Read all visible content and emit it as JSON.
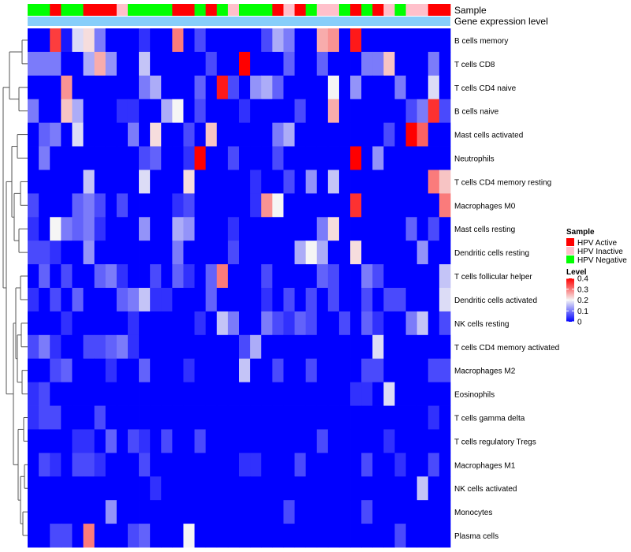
{
  "chart_data": {
    "type": "heatmap",
    "title": "",
    "annotation_tracks": [
      "Sample",
      "Gene expression level"
    ],
    "row_labels": [
      "B cells memory",
      "T cells CD8",
      "T cells CD4 naive",
      "B cells naive",
      "Mast cells activated",
      "Neutrophils",
      "T cells CD4 memory resting",
      "Macrophages M0",
      "Mast cells resting",
      "Dendritic cells resting",
      "T cells follicular helper",
      "Dendritic cells activated",
      "NK cells resting",
      "T cells CD4 memory activated",
      "Macrophages M2",
      "Eosinophils",
      "T cells gamma delta",
      "T cells regulatory  Tregs",
      "Macrophages M1",
      "NK cells activated",
      "Monocytes",
      "Plasma cells"
    ],
    "sample_groups": [
      "HPV Negative",
      "HPV Negative",
      "HPV Active",
      "HPV Negative",
      "HPV Negative",
      "HPV Active",
      "HPV Active",
      "HPV Active",
      "HPV Inactive",
      "HPV Negative",
      "HPV Negative",
      "HPV Negative",
      "HPV Negative",
      "HPV Active",
      "HPV Active",
      "HPV Negative",
      "HPV Active",
      "HPV Negative",
      "HPV Inactive",
      "HPV Negative",
      "HPV Negative",
      "HPV Negative",
      "HPV Active",
      "HPV Inactive",
      "HPV Active",
      "HPV Negative",
      "HPV Inactive",
      "HPV Inactive",
      "HPV Negative",
      "HPV Active",
      "HPV Negative",
      "HPV Active",
      "HPV Inactive",
      "HPV Negative",
      "HPV Inactive",
      "HPV Inactive",
      "HPV Active",
      "HPV Active"
    ],
    "values": [
      [
        0.0,
        0.0,
        0.35,
        0.02,
        0.18,
        0.22,
        0.1,
        0.0,
        0.0,
        0.0,
        0.04,
        0.0,
        0.0,
        0.3,
        0.0,
        0.06,
        0.0,
        0.0,
        0.0,
        0.0,
        0.0,
        0.06,
        0.14,
        0.1,
        0.0,
        0.0,
        0.26,
        0.28,
        0.0,
        0.38,
        0.0,
        0.0,
        0.0,
        0.0,
        0.0,
        0.0,
        0.0,
        0.0
      ],
      [
        0.1,
        0.1,
        0.1,
        0.0,
        0.0,
        0.14,
        0.26,
        0.12,
        0.0,
        0.0,
        0.16,
        0.0,
        0.0,
        0.0,
        0.0,
        0.0,
        0.06,
        0.0,
        0.0,
        0.4,
        0.0,
        0.0,
        0.0,
        0.08,
        0.0,
        0.0,
        0.08,
        0.0,
        0.0,
        0.0,
        0.1,
        0.1,
        0.24,
        0.0,
        0.0,
        0.0,
        0.1,
        0.0
      ],
      [
        0.0,
        0.0,
        0.0,
        0.28,
        0.0,
        0.0,
        0.0,
        0.0,
        0.0,
        0.0,
        0.1,
        0.14,
        0.0,
        0.0,
        0.0,
        0.08,
        0.0,
        0.38,
        0.06,
        0.0,
        0.12,
        0.14,
        0.08,
        0.0,
        0.0,
        0.0,
        0.0,
        0.2,
        0.0,
        0.12,
        0.0,
        0.0,
        0.0,
        0.1,
        0.0,
        0.0,
        0.18,
        0.0
      ],
      [
        0.1,
        0.0,
        0.0,
        0.24,
        0.14,
        0.0,
        0.0,
        0.0,
        0.04,
        0.04,
        0.0,
        0.0,
        0.14,
        0.2,
        0.0,
        0.06,
        0.0,
        0.0,
        0.0,
        0.04,
        0.0,
        0.0,
        0.0,
        0.0,
        0.06,
        0.0,
        0.0,
        0.26,
        0.0,
        0.0,
        0.0,
        0.0,
        0.0,
        0.0,
        0.06,
        0.1,
        0.36,
        0.06
      ],
      [
        0.0,
        0.08,
        0.1,
        0.0,
        0.18,
        0.0,
        0.0,
        0.0,
        0.0,
        0.1,
        0.0,
        0.22,
        0.0,
        0.0,
        0.06,
        0.0,
        0.24,
        0.0,
        0.0,
        0.0,
        0.0,
        0.0,
        0.1,
        0.14,
        0.0,
        0.0,
        0.0,
        0.0,
        0.0,
        0.0,
        0.0,
        0.0,
        0.06,
        0.0,
        0.4,
        0.32,
        0.0,
        0.0
      ],
      [
        0.0,
        0.1,
        0.0,
        0.0,
        0.0,
        0.0,
        0.0,
        0.0,
        0.0,
        0.0,
        0.06,
        0.08,
        0.0,
        0.0,
        0.04,
        0.4,
        0.0,
        0.0,
        0.06,
        0.0,
        0.0,
        0.0,
        0.06,
        0.0,
        0.0,
        0.0,
        0.0,
        0.0,
        0.0,
        0.4,
        0.0,
        0.12,
        0.0,
        0.0,
        0.0,
        0.0,
        0.0,
        0.0
      ],
      [
        0.0,
        0.0,
        0.0,
        0.0,
        0.0,
        0.16,
        0.0,
        0.0,
        0.0,
        0.0,
        0.18,
        0.0,
        0.0,
        0.0,
        0.22,
        0.0,
        0.0,
        0.0,
        0.0,
        0.0,
        0.04,
        0.0,
        0.0,
        0.06,
        0.0,
        0.12,
        0.0,
        0.16,
        0.0,
        0.0,
        0.0,
        0.0,
        0.0,
        0.0,
        0.0,
        0.0,
        0.3,
        0.24
      ],
      [
        0.06,
        0.0,
        0.0,
        0.0,
        0.08,
        0.1,
        0.06,
        0.0,
        0.06,
        0.0,
        0.0,
        0.0,
        0.0,
        0.04,
        0.06,
        0.0,
        0.0,
        0.0,
        0.0,
        0.0,
        0.04,
        0.28,
        0.2,
        0.0,
        0.0,
        0.0,
        0.0,
        0.0,
        0.0,
        0.36,
        0.0,
        0.0,
        0.0,
        0.0,
        0.0,
        0.0,
        0.0,
        0.3
      ],
      [
        0.04,
        0.0,
        0.2,
        0.1,
        0.08,
        0.1,
        0.04,
        0.0,
        0.0,
        0.0,
        0.12,
        0.0,
        0.0,
        0.14,
        0.12,
        0.0,
        0.0,
        0.0,
        0.04,
        0.0,
        0.0,
        0.0,
        0.0,
        0.0,
        0.0,
        0.0,
        0.1,
        0.22,
        0.0,
        0.0,
        0.0,
        0.0,
        0.0,
        0.0,
        0.08,
        0.0,
        0.06,
        0.0
      ],
      [
        0.06,
        0.06,
        0.04,
        0.0,
        0.0,
        0.12,
        0.0,
        0.0,
        0.0,
        0.0,
        0.0,
        0.0,
        0.0,
        0.1,
        0.0,
        0.0,
        0.0,
        0.0,
        0.06,
        0.0,
        0.0,
        0.0,
        0.0,
        0.0,
        0.14,
        0.2,
        0.14,
        0.0,
        0.0,
        0.22,
        0.0,
        0.0,
        0.0,
        0.0,
        0.0,
        0.12,
        0.0,
        0.0
      ],
      [
        0.0,
        0.08,
        0.0,
        0.06,
        0.0,
        0.0,
        0.08,
        0.1,
        0.04,
        0.0,
        0.0,
        0.06,
        0.0,
        0.08,
        0.04,
        0.0,
        0.08,
        0.3,
        0.0,
        0.0,
        0.0,
        0.06,
        0.0,
        0.0,
        0.0,
        0.0,
        0.08,
        0.06,
        0.0,
        0.0,
        0.1,
        0.06,
        0.0,
        0.0,
        0.0,
        0.0,
        0.0,
        0.16
      ],
      [
        0.04,
        0.0,
        0.06,
        0.0,
        0.08,
        0.0,
        0.0,
        0.0,
        0.08,
        0.1,
        0.16,
        0.04,
        0.04,
        0.0,
        0.0,
        0.0,
        0.08,
        0.0,
        0.0,
        0.0,
        0.0,
        0.04,
        0.0,
        0.06,
        0.0,
        0.06,
        0.0,
        0.06,
        0.0,
        0.0,
        0.06,
        0.0,
        0.06,
        0.06,
        0.0,
        0.0,
        0.0,
        0.18
      ],
      [
        0.0,
        0.0,
        0.0,
        0.04,
        0.0,
        0.0,
        0.0,
        0.0,
        0.0,
        0.04,
        0.0,
        0.0,
        0.0,
        0.0,
        0.0,
        0.04,
        0.0,
        0.16,
        0.1,
        0.0,
        0.0,
        0.1,
        0.06,
        0.04,
        0.08,
        0.06,
        0.0,
        0.0,
        0.06,
        0.0,
        0.08,
        0.04,
        0.0,
        0.0,
        0.1,
        0.16,
        0.0,
        0.06
      ],
      [
        0.06,
        0.1,
        0.04,
        0.0,
        0.0,
        0.06,
        0.06,
        0.08,
        0.1,
        0.04,
        0.0,
        0.0,
        0.0,
        0.0,
        0.0,
        0.0,
        0.0,
        0.0,
        0.0,
        0.06,
        0.14,
        0.0,
        0.0,
        0.0,
        0.0,
        0.0,
        0.0,
        0.0,
        0.0,
        0.0,
        0.0,
        0.18,
        0.0,
        0.0,
        0.0,
        0.0,
        0.0,
        0.0
      ],
      [
        0.0,
        0.0,
        0.06,
        0.08,
        0.0,
        0.0,
        0.0,
        0.04,
        0.0,
        0.0,
        0.08,
        0.0,
        0.0,
        0.0,
        0.04,
        0.0,
        0.0,
        0.0,
        0.0,
        0.16,
        0.0,
        0.0,
        0.06,
        0.0,
        0.0,
        0.06,
        0.0,
        0.0,
        0.0,
        0.0,
        0.06,
        0.06,
        0.0,
        0.0,
        0.0,
        0.0,
        0.06,
        0.06
      ],
      [
        0.04,
        0.06,
        0.0,
        0.0,
        0.0,
        0.0,
        0.0,
        0.0,
        0.0,
        0.0,
        0.0,
        0.0,
        0.0,
        0.0,
        0.0,
        0.0,
        0.0,
        0.0,
        0.0,
        0.0,
        0.0,
        0.0,
        0.0,
        0.0,
        0.0,
        0.0,
        0.0,
        0.0,
        0.0,
        0.04,
        0.04,
        0.0,
        0.18,
        0.0,
        0.0,
        0.0,
        0.0,
        0.0
      ],
      [
        0.04,
        0.06,
        0.06,
        0.0,
        0.0,
        0.0,
        0.06,
        0.0,
        0.0,
        0.0,
        0.0,
        0.0,
        0.0,
        0.0,
        0.0,
        0.0,
        0.0,
        0.0,
        0.0,
        0.0,
        0.0,
        0.0,
        0.0,
        0.0,
        0.0,
        0.0,
        0.0,
        0.0,
        0.0,
        0.0,
        0.0,
        0.0,
        0.0,
        0.0,
        0.0,
        0.0,
        0.04,
        0.0
      ],
      [
        0.0,
        0.0,
        0.0,
        0.0,
        0.04,
        0.04,
        0.0,
        0.08,
        0.0,
        0.06,
        0.04,
        0.0,
        0.06,
        0.0,
        0.0,
        0.06,
        0.0,
        0.0,
        0.0,
        0.0,
        0.0,
        0.0,
        0.0,
        0.0,
        0.0,
        0.0,
        0.06,
        0.0,
        0.0,
        0.0,
        0.0,
        0.0,
        0.04,
        0.0,
        0.0,
        0.0,
        0.0,
        0.0
      ],
      [
        0.0,
        0.06,
        0.04,
        0.0,
        0.06,
        0.06,
        0.04,
        0.0,
        0.0,
        0.0,
        0.06,
        0.0,
        0.0,
        0.0,
        0.0,
        0.0,
        0.0,
        0.0,
        0.0,
        0.04,
        0.04,
        0.0,
        0.0,
        0.0,
        0.06,
        0.0,
        0.0,
        0.0,
        0.0,
        0.0,
        0.06,
        0.0,
        0.0,
        0.04,
        0.0,
        0.0,
        0.06,
        0.0
      ],
      [
        0.0,
        0.0,
        0.0,
        0.0,
        0.0,
        0.0,
        0.0,
        0.0,
        0.0,
        0.0,
        0.0,
        0.04,
        0.0,
        0.0,
        0.0,
        0.0,
        0.0,
        0.0,
        0.0,
        0.0,
        0.0,
        0.0,
        0.0,
        0.0,
        0.0,
        0.0,
        0.0,
        0.0,
        0.0,
        0.0,
        0.0,
        0.0,
        0.0,
        0.0,
        0.0,
        0.16,
        0.0,
        0.0
      ],
      [
        0.0,
        0.0,
        0.0,
        0.0,
        0.0,
        0.0,
        0.0,
        0.12,
        0.0,
        0.0,
        0.0,
        0.0,
        0.0,
        0.0,
        0.0,
        0.0,
        0.0,
        0.0,
        0.0,
        0.0,
        0.0,
        0.0,
        0.0,
        0.06,
        0.0,
        0.0,
        0.0,
        0.0,
        0.0,
        0.0,
        0.06,
        0.0,
        0.0,
        0.0,
        0.0,
        0.0,
        0.0,
        0.0
      ],
      [
        0.0,
        0.0,
        0.06,
        0.06,
        0.0,
        0.3,
        0.0,
        0.0,
        0.0,
        0.06,
        0.08,
        0.0,
        0.0,
        0.0,
        0.2,
        0.0,
        0.0,
        0.0,
        0.0,
        0.0,
        0.0,
        0.0,
        0.0,
        0.0,
        0.0,
        0.0,
        0.0,
        0.0,
        0.0,
        0.0,
        0.0,
        0.0,
        0.0,
        0.06,
        0.0,
        0.0,
        0.0,
        0.0
      ]
    ],
    "legend": {
      "sample_title": "Sample",
      "sample_entries": [
        "HPV Active",
        "HPV Inactive",
        "HPV Negative"
      ],
      "level_title": "Level",
      "level_ticks": [
        "0.4",
        "0.3",
        "0.2",
        "0.1",
        "0"
      ]
    },
    "color_scale": {
      "min": 0,
      "max": 0.4,
      "low": "#0000ff",
      "mid": "#f5f5f5",
      "high": "#ff0000"
    },
    "group_colors": {
      "HPV Active": "#ff0000",
      "HPV Inactive": "#ffc0cb",
      "HPV Negative": "#00ff00"
    },
    "expression_track_color": "#87cefa"
  }
}
